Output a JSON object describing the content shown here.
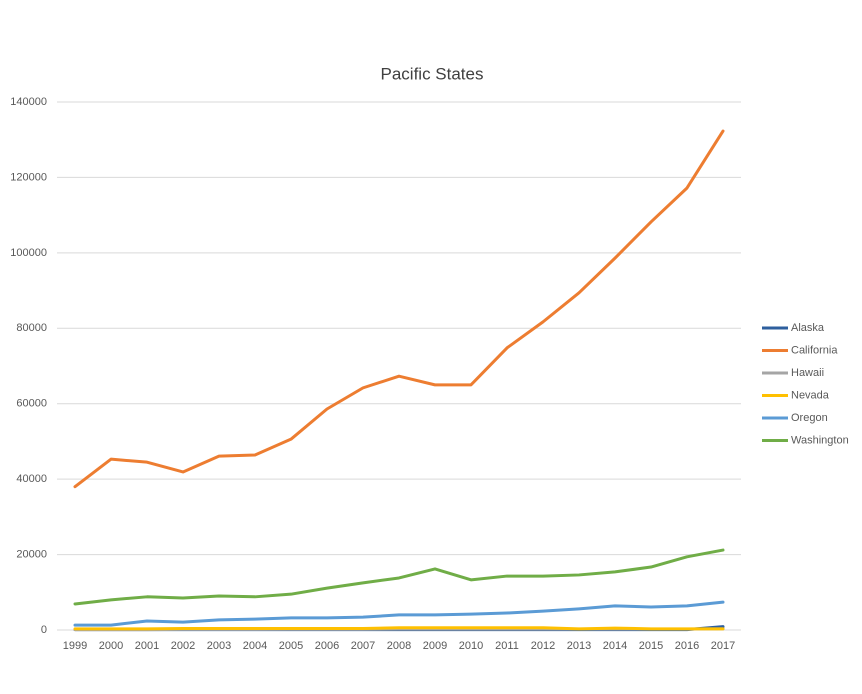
{
  "chart_data": {
    "type": "line",
    "title": "Pacific States",
    "categories": [
      "1999",
      "2000",
      "2001",
      "2002",
      "2003",
      "2004",
      "2005",
      "2006",
      "2007",
      "2008",
      "2009",
      "2010",
      "2011",
      "2012",
      "2013",
      "2014",
      "2015",
      "2016",
      "2017"
    ],
    "series": [
      {
        "name": "Alaska",
        "color": "#2e5f9e",
        "values": [
          100,
          100,
          100,
          100,
          100,
          100,
          100,
          100,
          100,
          100,
          100,
          100,
          100,
          100,
          100,
          100,
          100,
          100,
          900
        ]
      },
      {
        "name": "California",
        "color": "#ed7d31",
        "values": [
          38000,
          45300,
          44500,
          41900,
          46100,
          46400,
          50600,
          58600,
          64200,
          67300,
          65000,
          65000,
          74800,
          81700,
          89400,
          98600,
          108200,
          117200,
          132300
        ]
      },
      {
        "name": "Hawaii",
        "color": "#a5a5a5",
        "values": [
          100,
          100,
          100,
          150,
          150,
          150,
          200,
          200,
          200,
          250,
          250,
          250,
          250,
          250,
          250,
          250,
          250,
          250,
          300
        ]
      },
      {
        "name": "Nevada",
        "color": "#ffc000",
        "values": [
          300,
          300,
          300,
          400,
          400,
          400,
          400,
          400,
          400,
          600,
          600,
          600,
          600,
          600,
          300,
          500,
          300,
          300,
          300
        ]
      },
      {
        "name": "Oregon",
        "color": "#5b9bd5",
        "values": [
          1300,
          1300,
          2400,
          2100,
          2700,
          2900,
          3200,
          3200,
          3400,
          4000,
          4000,
          4200,
          4500,
          5000,
          5600,
          6400,
          6100,
          6400,
          7400
        ]
      },
      {
        "name": "Washington",
        "color": "#70ad47",
        "values": [
          6900,
          8000,
          8800,
          8500,
          9000,
          8800,
          9500,
          11100,
          12500,
          13800,
          16200,
          13300,
          14300,
          14300,
          14600,
          15400,
          16700,
          19400,
          21200
        ]
      }
    ],
    "ylim": [
      0,
      140000
    ],
    "yticks": [
      0,
      20000,
      40000,
      60000,
      80000,
      100000,
      120000,
      140000
    ],
    "grid": true,
    "legend": "right"
  }
}
